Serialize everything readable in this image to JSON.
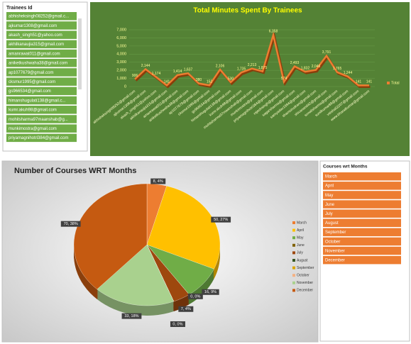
{
  "slicers": [
    {
      "title": "Trainees Id",
      "items": [
        "abhisheksingh08252@gmail.c...",
        "ajkumar1308@gmail.com",
        "akash_singh51@yahoo.com",
        "akhilkanaujia315@gmail.com",
        "amanrawat011@gmail.com",
        "aniketkushwaha38@gmail.com",
        "ap1077679@gmail.com",
        "cksmur1995@gmail.com",
        "gs966534@gmail.com",
        "himanshugulati138@gmail.c...",
        "kumr.akuh98@gmail.com",
        "mohitsharma97maanshab@g...",
        "munkimostra@gmail.com",
        "priyamagnihotri384@gmail.com"
      ]
    },
    {
      "title": "Courses wrt Months",
      "items": [
        "March",
        "April",
        "May",
        "June",
        "July",
        "August",
        "September",
        "October",
        "November",
        "December"
      ]
    }
  ],
  "chart_data": [
    {
      "type": "line",
      "title": "Total Minutes Spent By Trainees",
      "categories": [
        "abhisheksingh08252@gmail.com",
        "ajkumar1308@gmail.com",
        "akash_singh51@yahoo.com",
        "akhilkanaujia315@gmail.com",
        "amanrawat011@gmail.com",
        "aniketkushwaha38@gmail.com",
        "ap1077679@gmail.com",
        "cksmur1995@gmail.com",
        "gs966534@gmail.com",
        "himanshugulati138@gmail.com",
        "kumr.akuh98@gmail.com",
        "mohitsharma97maanshab@gmail.com",
        "munkimostra@gmail.com",
        "priyamagnihotri384@gmail.com",
        "rajeshsingh@gmail.com",
        "sagarsharma@gmail.com",
        "samyadav1994@gmail.com",
        "shamsirudrani@gmail.com",
        "shivanand42@gmail.com",
        "sonalisharma@gmail.com",
        "sunilkumar88@gmail.com",
        "vaishali2207@gmail.com",
        "www.bharatkumar@gmail.com"
      ],
      "series": [
        {
          "name": "Total",
          "color": "#ed7d31",
          "values": [
            906,
            2144,
            1174,
            141,
            1414,
            1637,
            380,
            152,
            2106,
            530,
            1735,
            2213,
            1875,
            6358,
            574,
            2493,
            1832,
            2046,
            3791,
            1765,
            1244,
            141,
            141
          ],
          "value_labels": [
            "906",
            "2,144",
            "1,174",
            "141",
            "1,414",
            "1,637",
            "380",
            "152",
            "2,106",
            "530",
            "1,735",
            "2,213",
            "1,875",
            "6,358",
            "574",
            "2,493",
            "1,832",
            "2,046",
            "3,791",
            "1,765",
            "1,244",
            "141",
            "141"
          ]
        }
      ],
      "ylim": [
        0,
        7000
      ],
      "yticks": [
        0,
        {
          "value": 1000,
          "label": "1,000"
        },
        {
          "value": 2000,
          "label": "2,000"
        },
        {
          "value": 3000,
          "label": "3,000"
        },
        {
          "value": 4000,
          "label": "4,000"
        },
        {
          "value": 5000,
          "label": "5,000"
        },
        {
          "value": 6000,
          "label": "6,000"
        },
        {
          "value": 7000,
          "label": "7,000"
        }
      ],
      "legend": "right"
    },
    {
      "type": "pie",
      "title": "Number of Courses WRT Months",
      "categories": [
        "March",
        "April",
        "May",
        "June",
        "July",
        "August",
        "September",
        "October",
        "November",
        "December"
      ],
      "values": [
        8,
        50,
        16,
        0,
        7,
        0,
        0,
        0,
        33,
        70
      ],
      "value_labels": [
        "8, 4%",
        "50, 27%",
        "16, 9%",
        "0, 0%",
        "7, 4%",
        "0, 0%",
        null,
        null,
        "33, 18%",
        "70, 38%"
      ],
      "colors": [
        "#ed7d31",
        "#ffc000",
        "#70ad47",
        "#7f6000",
        "#9e480e",
        "#375623",
        "#d9a400",
        "#f4b183",
        "#a9d18e",
        "#c55a11"
      ],
      "legend": "right"
    }
  ]
}
